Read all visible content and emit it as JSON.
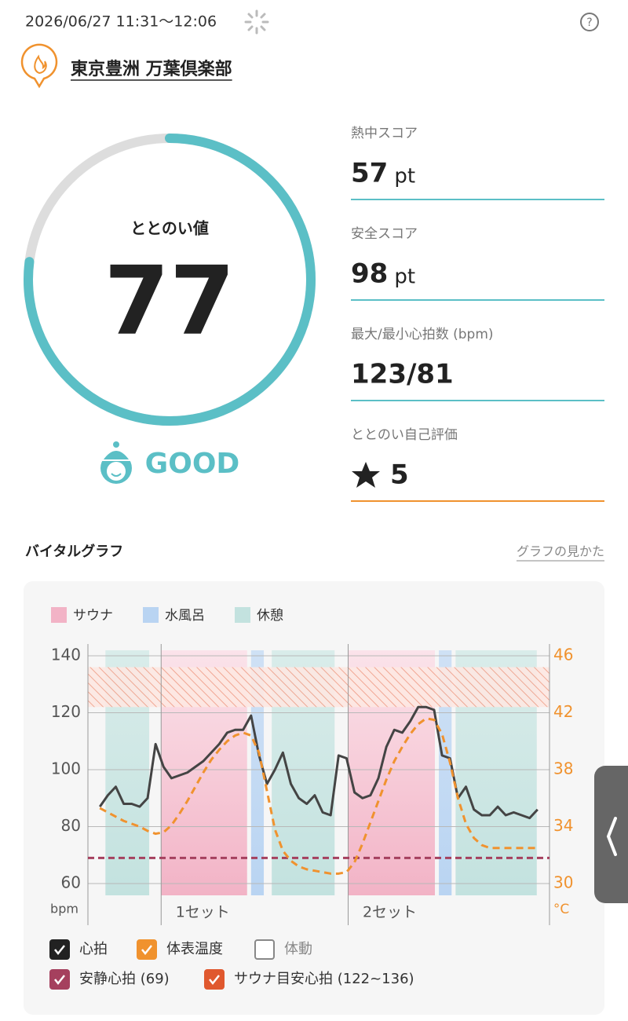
{
  "header": {
    "datetime": "2026/06/27 11:31～12:06",
    "venue": "東京豊洲 万葉倶楽部"
  },
  "gauge": {
    "label": "ととのい値",
    "value": 77,
    "max": 100,
    "rating": "GOOD"
  },
  "scores": [
    {
      "label": "熱中スコア",
      "value": 57,
      "unit": "pt"
    },
    {
      "label": "安全スコア",
      "value": 98,
      "unit": "pt"
    },
    {
      "label": "最大/最小心拍数 (bpm)",
      "value": "123/81"
    },
    {
      "label": "ととのい自己評価",
      "value": 5
    }
  ],
  "vital": {
    "title": "バイタルグラフ",
    "link": "グラフの見かた"
  },
  "chart_data": {
    "type": "line",
    "zone_kinds": [
      {
        "name": "サウナ",
        "color": "#f2b3c6"
      },
      {
        "name": "水風呂",
        "color": "#b9d4f2"
      },
      {
        "name": "休憩",
        "color": "#c3e2df"
      }
    ],
    "zones": [
      {
        "kind": 2,
        "start": 0.7,
        "end": 6.2
      },
      {
        "kind": 0,
        "start": 7.7,
        "end": 18.5
      },
      {
        "kind": 1,
        "start": 19.0,
        "end": 20.6
      },
      {
        "kind": 2,
        "start": 21.6,
        "end": 29.5
      },
      {
        "kind": 0,
        "start": 31.2,
        "end": 42.1
      },
      {
        "kind": 1,
        "start": 42.6,
        "end": 44.2
      },
      {
        "kind": 2,
        "start": 44.7,
        "end": 54.9
      }
    ],
    "sets": [
      "1セット",
      "2セット"
    ],
    "xlim": [
      -1.5,
      56.5
    ],
    "ylim": [
      60,
      140
    ],
    "yticks": [
      60,
      80,
      100,
      120,
      140
    ],
    "y2lim": [
      30,
      46
    ],
    "y2ticks": [
      30,
      34,
      38,
      42,
      46
    ],
    "ylabel": "bpm",
    "y2label": "°C",
    "grid": true,
    "series": [
      {
        "name": "心拍",
        "color": "#444444",
        "values": [
          87,
          91,
          94,
          88,
          88,
          87,
          90,
          109,
          101,
          97,
          98,
          99,
          101,
          103,
          106,
          109,
          113,
          114,
          114,
          119,
          105,
          95,
          100,
          106,
          95,
          90,
          88,
          91,
          85,
          84,
          105,
          104,
          92,
          90,
          91,
          97,
          108,
          114,
          113,
          117,
          122,
          122,
          121,
          105,
          104,
          90,
          94,
          86,
          84,
          84,
          87,
          84,
          85,
          84,
          83,
          86
        ]
      },
      {
        "name": "体表温度",
        "color": "#f0922e",
        "axis": "y2",
        "values": [
          35.3,
          35.0,
          34.7,
          34.4,
          34.2,
          34.0,
          33.7,
          33.5,
          33.6,
          34.1,
          34.9,
          35.8,
          36.8,
          37.8,
          38.7,
          39.4,
          40.0,
          40.4,
          40.6,
          40.4,
          39.2,
          36.5,
          33.8,
          32.3,
          31.6,
          31.2,
          31.0,
          30.9,
          30.8,
          30.7,
          30.7,
          30.8,
          31.5,
          32.8,
          34.3,
          35.8,
          37.3,
          38.6,
          39.6,
          40.5,
          41.2,
          41.6,
          41.5,
          40.5,
          38.5,
          36.0,
          34.2,
          33.2,
          32.7,
          32.5,
          32.5,
          32.5,
          32.5,
          32.5,
          32.5,
          32.5
        ]
      }
    ],
    "movement": {
      "name": "体動"
    },
    "resting_hr": {
      "label": "安静心拍 (69)",
      "value": 69,
      "color": "#a5405e"
    },
    "target_hr": {
      "label": "サウナ目安心拍 (122~136)",
      "range": [
        122,
        136
      ],
      "color": "#e0582e"
    }
  }
}
